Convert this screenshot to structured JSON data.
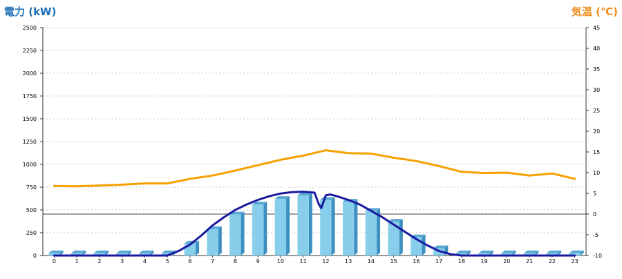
{
  "chart_data": {
    "type": "bar",
    "left_axis_title": "電力 (kW)",
    "right_axis_title": "気温 (℃)",
    "left_ticks": [
      "0",
      "250",
      "500",
      "750",
      "1000",
      "1250",
      "1500",
      "1750",
      "2000",
      "2250",
      "2500"
    ],
    "right_ticks": [
      "-10",
      "-5",
      "0",
      "5",
      "10",
      "15",
      "20",
      "25",
      "30",
      "35",
      "40",
      "45"
    ],
    "x_labels": [
      "0",
      "1",
      "2",
      "3",
      "4",
      "5",
      "6",
      "7",
      "8",
      "9",
      "10",
      "11",
      "12",
      "13",
      "14",
      "15",
      "16",
      "17",
      "18",
      "19",
      "20",
      "21",
      "22",
      "23"
    ],
    "ylim_left": [
      0,
      2500
    ],
    "ylim_right": [
      -10,
      45
    ],
    "grid": true,
    "series": [
      {
        "kind": "bar",
        "axis": "left",
        "color": "#87ceeb",
        "values": [
          25,
          25,
          25,
          25,
          25,
          25,
          130,
          290,
          450,
          560,
          620,
          660,
          610,
          590,
          490,
          370,
          200,
          80,
          25,
          25,
          25,
          25,
          25,
          25
        ]
      },
      {
        "kind": "line",
        "axis": "left",
        "color": "#1a1aa0",
        "x": [
          0,
          1,
          2,
          3,
          4,
          5,
          5.5,
          6,
          6.5,
          7,
          7.5,
          8,
          8.5,
          9,
          9.5,
          10,
          10.5,
          11,
          11.5,
          11.7,
          11.8,
          12,
          12.2,
          12.5,
          13,
          13.5,
          14,
          14.5,
          15,
          15.5,
          16,
          16.5,
          17,
          17.5,
          18,
          19,
          20,
          21,
          22,
          23
        ],
        "values": [
          0,
          0,
          0,
          0,
          0,
          0,
          50,
          120,
          220,
          330,
          420,
          500,
          560,
          610,
          650,
          680,
          695,
          700,
          690,
          560,
          520,
          660,
          670,
          650,
          610,
          560,
          490,
          420,
          340,
          260,
          180,
          110,
          50,
          15,
          0,
          0,
          0,
          0,
          0,
          0
        ]
      },
      {
        "kind": "line",
        "axis": "right",
        "color": "#f6a000",
        "values": [
          6.8,
          6.7,
          6.9,
          7.1,
          7.4,
          7.4,
          8.5,
          9.3,
          10.5,
          11.8,
          13.1,
          14.1,
          15.4,
          14.7,
          14.6,
          13.6,
          12.8,
          11.6,
          10.2,
          9.9,
          10.0,
          9.3,
          9.8,
          8.5
        ]
      }
    ]
  }
}
